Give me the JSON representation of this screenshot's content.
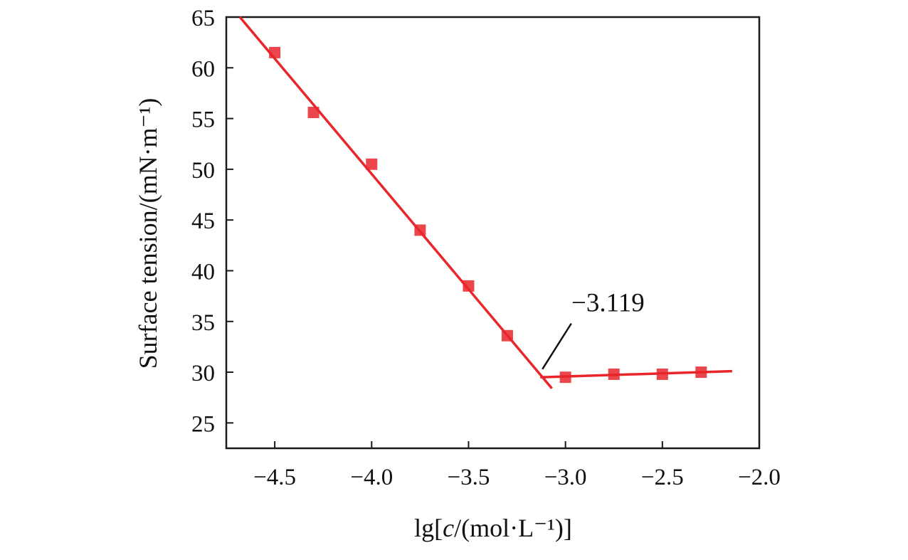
{
  "chart_data": {
    "type": "scatter",
    "xlabel": {
      "prefix": "lg[",
      "italic": "c",
      "suffix": "/(mol·L⁻¹)]"
    },
    "ylabel": "Surface tension/(mN·m⁻¹)",
    "xlim": [
      -4.75,
      -2.0
    ],
    "ylim": [
      22.5,
      65
    ],
    "x_ticks": [
      {
        "value": -4.5,
        "label": "−4.5"
      },
      {
        "value": -4.0,
        "label": "−4.0"
      },
      {
        "value": -3.5,
        "label": "−3.5"
      },
      {
        "value": -3.0,
        "label": "−3.0"
      },
      {
        "value": -2.5,
        "label": "−2.5"
      },
      {
        "value": -2.0,
        "label": "−2.0"
      }
    ],
    "y_ticks": [
      {
        "value": 25,
        "label": "25"
      },
      {
        "value": 30,
        "label": "30"
      },
      {
        "value": 35,
        "label": "35"
      },
      {
        "value": 40,
        "label": "40"
      },
      {
        "value": 45,
        "label": "45"
      },
      {
        "value": 50,
        "label": "50"
      },
      {
        "value": 55,
        "label": "55"
      },
      {
        "value": 60,
        "label": "60"
      },
      {
        "value": 65,
        "label": "65"
      }
    ],
    "series": [
      {
        "marker": "square",
        "color": "#e8262c",
        "x": [
          -4.5,
          -4.3,
          -4.0,
          -3.75,
          -3.5,
          -3.3,
          -3.0,
          -2.75,
          -2.5,
          -2.3
        ],
        "y": [
          61.5,
          55.6,
          50.5,
          44.0,
          38.5,
          33.6,
          29.5,
          29.8,
          29.8,
          30.0
        ]
      }
    ],
    "fit_lines": [
      {
        "color": "#e8262c",
        "x": [
          -4.68,
          -3.07
        ],
        "y": [
          65.0,
          28.4
        ]
      },
      {
        "color": "#e8262c",
        "x": [
          -3.13,
          -2.14
        ],
        "y": [
          29.5,
          30.1
        ]
      }
    ],
    "annotation": {
      "text": "−3.119",
      "point": [
        -3.119,
        30.3
      ],
      "text_pos": [
        -2.94,
        36.0
      ],
      "leader_end": [
        -2.97,
        34.8
      ]
    },
    "grid": false,
    "legend": false
  }
}
